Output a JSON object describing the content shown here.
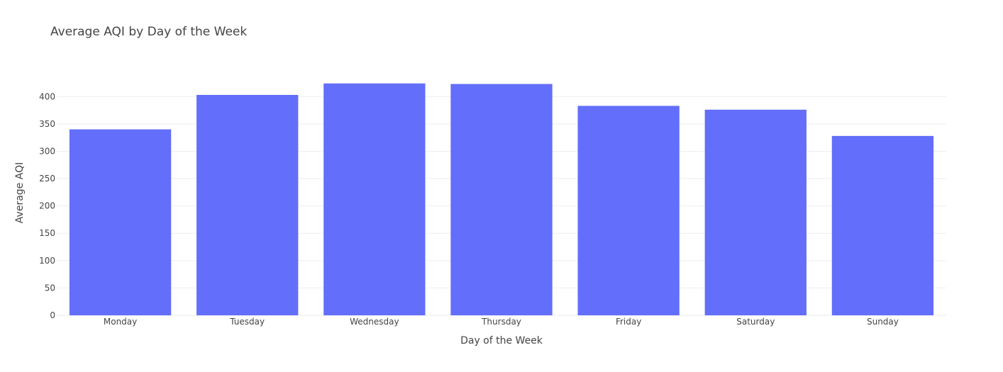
{
  "chart_data": {
    "type": "bar",
    "title": "Average AQI by Day of the Week",
    "xlabel": "Day of the Week",
    "ylabel": "Average AQI",
    "categories": [
      "Monday",
      "Tuesday",
      "Wednesday",
      "Thursday",
      "Friday",
      "Saturday",
      "Sunday"
    ],
    "values": [
      340,
      403,
      424,
      423,
      383,
      376,
      328
    ],
    "ylim": [
      0,
      447
    ],
    "yticks": [
      0,
      50,
      100,
      150,
      200,
      250,
      300,
      350,
      400
    ],
    "grid": true,
    "bar_color": "#636efa"
  }
}
